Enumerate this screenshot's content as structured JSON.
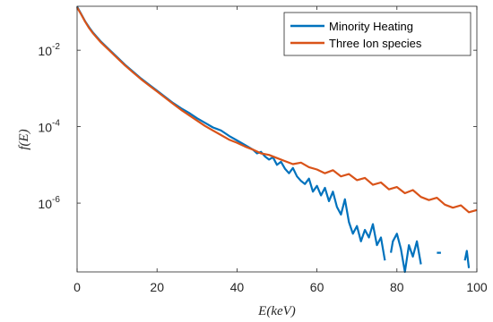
{
  "chart_data": {
    "type": "line",
    "title": "",
    "xlabel": "E(keV)",
    "ylabel": "f(E)",
    "xlim": [
      0,
      100
    ],
    "ylim_log10": [
      -7.8,
      -0.85
    ],
    "y_scale": "log",
    "x_ticks": [
      0,
      20,
      40,
      60,
      80,
      100
    ],
    "y_ticks": [
      {
        "base": "10",
        "exp": "-2",
        "log10": -2
      },
      {
        "base": "10",
        "exp": "-4",
        "log10": -4
      },
      {
        "base": "10",
        "exp": "-6",
        "log10": -6
      }
    ],
    "grid": false,
    "legend_position": "top-right",
    "series": [
      {
        "name": "Minority Heating",
        "color": "#0072BD",
        "points": [
          [
            0,
            -0.86
          ],
          [
            1,
            -1.05
          ],
          [
            2,
            -1.24
          ],
          [
            3,
            -1.4
          ],
          [
            4,
            -1.54
          ],
          [
            5,
            -1.66
          ],
          [
            6,
            -1.78
          ],
          [
            8,
            -1.98
          ],
          [
            10,
            -2.18
          ],
          [
            12,
            -2.38
          ],
          [
            14,
            -2.56
          ],
          [
            16,
            -2.74
          ],
          [
            18,
            -2.9
          ],
          [
            20,
            -3.06
          ],
          [
            22,
            -3.22
          ],
          [
            24,
            -3.38
          ],
          [
            26,
            -3.52
          ],
          [
            28,
            -3.64
          ],
          [
            30,
            -3.78
          ],
          [
            32,
            -3.9
          ],
          [
            34,
            -4.02
          ],
          [
            35,
            -4.06
          ],
          [
            36,
            -4.1
          ],
          [
            38,
            -4.24
          ],
          [
            40,
            -4.36
          ],
          [
            42,
            -4.48
          ],
          [
            44,
            -4.6
          ],
          [
            45,
            -4.7
          ],
          [
            46,
            -4.66
          ],
          [
            47,
            -4.78
          ],
          [
            48,
            -4.86
          ],
          [
            49,
            -4.8
          ],
          [
            50,
            -5.0
          ],
          [
            51,
            -4.92
          ],
          [
            52,
            -5.1
          ],
          [
            53,
            -5.22
          ],
          [
            54,
            -5.08
          ],
          [
            55,
            -5.3
          ],
          [
            56,
            -5.42
          ],
          [
            57,
            -5.5
          ],
          [
            58,
            -5.36
          ],
          [
            59,
            -5.7
          ],
          [
            60,
            -5.55
          ],
          [
            61,
            -5.8
          ],
          [
            62,
            -5.6
          ],
          [
            63,
            -5.95
          ],
          [
            64,
            -5.7
          ],
          [
            65,
            -6.1
          ],
          [
            66,
            -6.3
          ],
          [
            67,
            -5.9
          ],
          [
            68,
            -6.5
          ],
          [
            69,
            -6.8
          ],
          [
            70,
            -6.6
          ],
          [
            71,
            -7.0
          ],
          [
            72,
            -6.7
          ],
          [
            73,
            -6.9
          ],
          [
            74,
            -6.55
          ],
          [
            75,
            -7.1
          ],
          [
            76,
            -6.9
          ],
          [
            77,
            -7.5
          ],
          [
            78,
            null
          ],
          [
            78.5,
            -7.3
          ],
          [
            79,
            -7.0
          ],
          [
            80,
            -6.8
          ],
          [
            81,
            -7.2
          ],
          [
            82,
            -7.8
          ],
          [
            83,
            -7.1
          ],
          [
            84,
            -7.4
          ],
          [
            85,
            -7.0
          ],
          [
            86,
            -7.6
          ],
          [
            87,
            null
          ],
          [
            89,
            null
          ],
          [
            90,
            -7.3
          ],
          [
            91,
            -7.3
          ],
          [
            92,
            null
          ],
          [
            97,
            -7.5
          ],
          [
            97.5,
            -7.25
          ],
          [
            98,
            -7.7
          ]
        ]
      },
      {
        "name": "Three Ion species",
        "color": "#D95319",
        "points": [
          [
            0,
            -0.88
          ],
          [
            1,
            -1.06
          ],
          [
            2,
            -1.25
          ],
          [
            3,
            -1.42
          ],
          [
            4,
            -1.56
          ],
          [
            5,
            -1.68
          ],
          [
            6,
            -1.8
          ],
          [
            8,
            -2.0
          ],
          [
            10,
            -2.2
          ],
          [
            12,
            -2.4
          ],
          [
            14,
            -2.58
          ],
          [
            16,
            -2.76
          ],
          [
            18,
            -2.92
          ],
          [
            20,
            -3.08
          ],
          [
            22,
            -3.24
          ],
          [
            24,
            -3.4
          ],
          [
            26,
            -3.56
          ],
          [
            28,
            -3.7
          ],
          [
            30,
            -3.84
          ],
          [
            32,
            -3.98
          ],
          [
            34,
            -4.1
          ],
          [
            36,
            -4.22
          ],
          [
            38,
            -4.34
          ],
          [
            40,
            -4.42
          ],
          [
            42,
            -4.52
          ],
          [
            44,
            -4.6
          ],
          [
            46,
            -4.7
          ],
          [
            48,
            -4.74
          ],
          [
            50,
            -4.82
          ],
          [
            52,
            -4.9
          ],
          [
            54,
            -4.98
          ],
          [
            56,
            -4.94
          ],
          [
            58,
            -5.06
          ],
          [
            60,
            -5.12
          ],
          [
            62,
            -5.22
          ],
          [
            64,
            -5.14
          ],
          [
            66,
            -5.3
          ],
          [
            68,
            -5.24
          ],
          [
            70,
            -5.4
          ],
          [
            72,
            -5.34
          ],
          [
            74,
            -5.52
          ],
          [
            76,
            -5.46
          ],
          [
            78,
            -5.64
          ],
          [
            80,
            -5.58
          ],
          [
            82,
            -5.74
          ],
          [
            84,
            -5.66
          ],
          [
            86,
            -5.84
          ],
          [
            88,
            -5.92
          ],
          [
            90,
            -5.86
          ],
          [
            92,
            -6.04
          ],
          [
            94,
            -6.12
          ],
          [
            96,
            -6.06
          ],
          [
            98,
            -6.24
          ],
          [
            100,
            -6.18
          ]
        ]
      }
    ]
  }
}
